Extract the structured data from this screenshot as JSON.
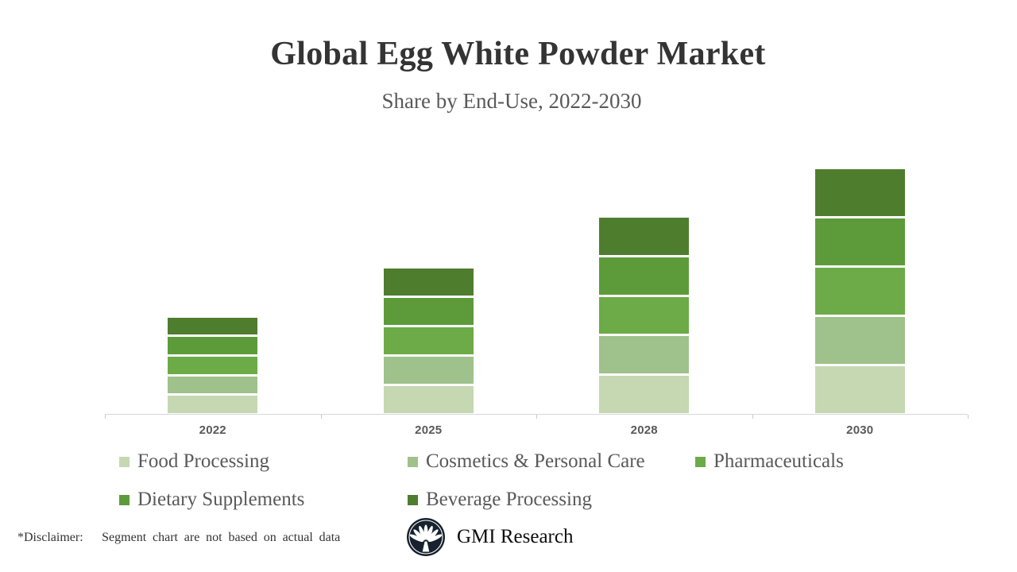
{
  "header": {
    "title": "Global Egg White Powder Market",
    "subtitle": "Share by End-Use, 2022-2030"
  },
  "chart_data": {
    "type": "bar",
    "variant": "stacked-vertical",
    "title": "Global Egg White Powder Market",
    "subtitle": "Share by End-Use, 2022-2030",
    "categories": [
      "2022",
      "2025",
      "2028",
      "2030"
    ],
    "series": [
      {
        "name": "Food Processing",
        "color": "#c5d8b2",
        "values": [
          20,
          30.3,
          40.8,
          51
        ]
      },
      {
        "name": "Cosmetics & Personal Care",
        "color": "#9fc18c",
        "values": [
          20,
          30.3,
          40.8,
          51
        ]
      },
      {
        "name": "Pharmaceuticals",
        "color": "#6cab47",
        "values": [
          20,
          30.3,
          40.8,
          51
        ]
      },
      {
        "name": "Dietary Supplements",
        "color": "#5d9b3a",
        "values": [
          20,
          30.3,
          40.8,
          51
        ]
      },
      {
        "name": "Beverage Processing",
        "color": "#4f7d2e",
        "values": [
          20,
          30.3,
          40.8,
          51
        ]
      }
    ],
    "stack_order_bottom_to_top": [
      "Food Processing",
      "Cosmetics & Personal Care",
      "Pharmaceuticals",
      "Dietary Supplements",
      "Beverage Processing"
    ],
    "bar_totals": [
      100,
      151.5,
      204,
      255
    ],
    "units": "relative share index (no value axis shown; segment chart not based on actual data per disclaimer)",
    "value_axis": "hidden",
    "gridlines": false,
    "legend_position": "bottom",
    "axis_line_color": "#d6d6d6",
    "tick_color": "#c9c9c9",
    "category_label_color": "#595959"
  },
  "footer": {
    "disclaimer": "*Disclaimer:   Segment chart are not based on actual data",
    "brand_name": "GMI Research",
    "brand_color": "#17222e"
  }
}
